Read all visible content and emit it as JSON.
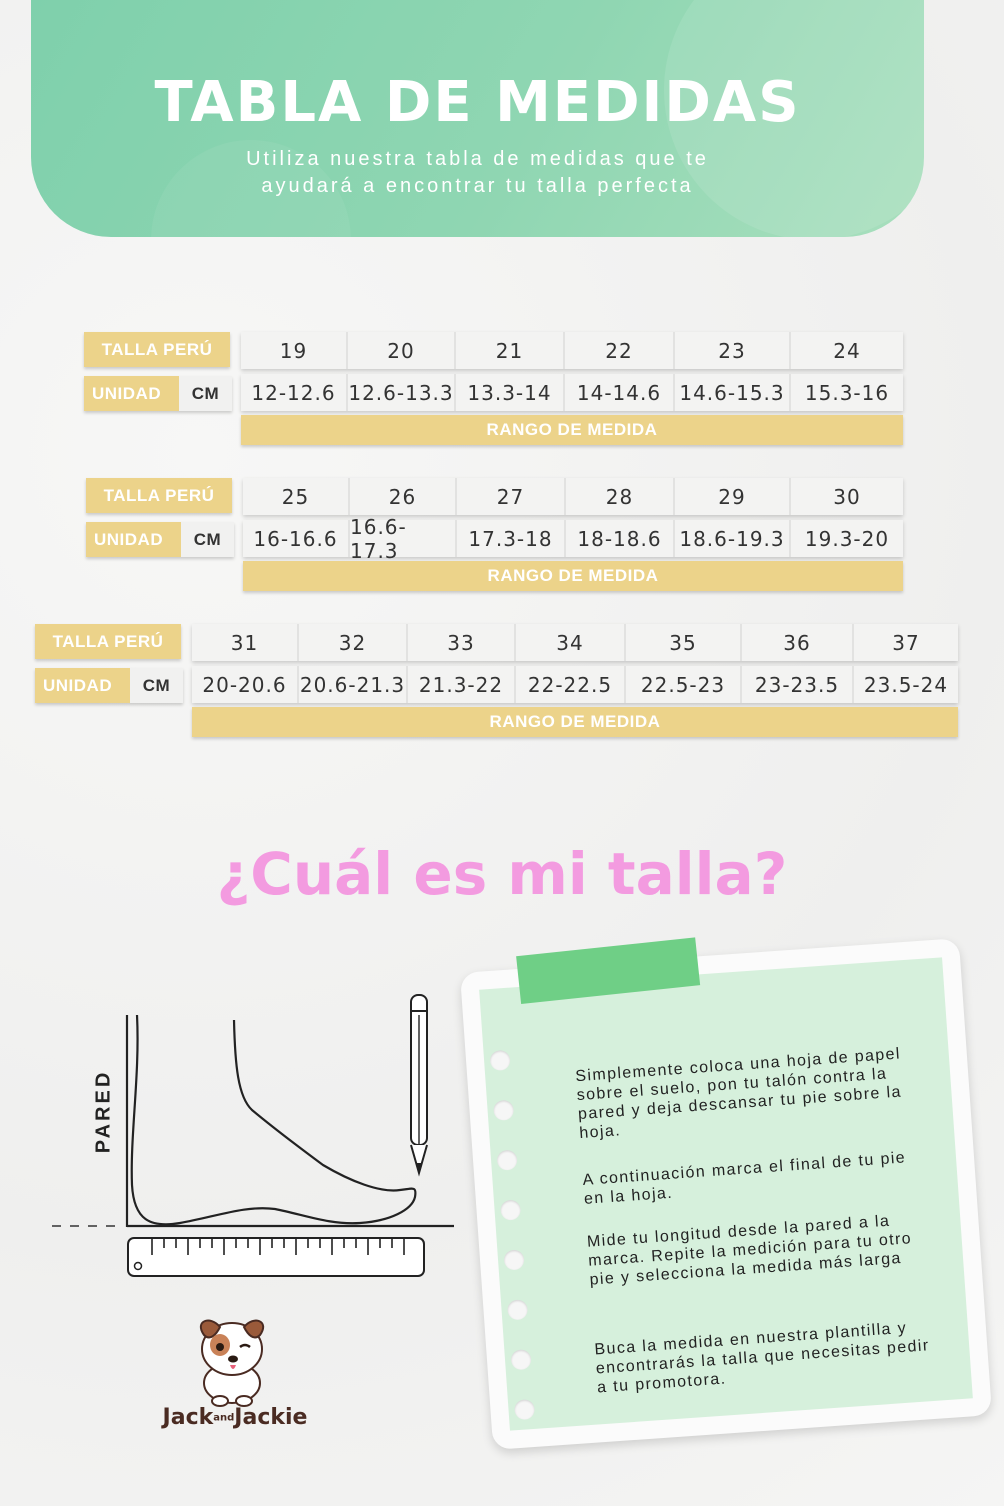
{
  "header": {
    "title": "TABLA DE MEDIDAS",
    "subtitle_line1": "Utiliza nuestra tabla de medidas que te",
    "subtitle_line2": "ayudará a encontrar tu talla perfecta"
  },
  "tables": [
    {
      "size_label": "TALLA PERÚ",
      "unit_label": "UNIDAD",
      "unit_value": "CM",
      "range_label": "RANGO DE MEDIDA",
      "sizes": [
        "19",
        "20",
        "21",
        "22",
        "23",
        "24"
      ],
      "ranges": [
        "12-12.6",
        "12.6-13.3",
        "13.3-14",
        "14-14.6",
        "14.6-15.3",
        "15.3-16"
      ]
    },
    {
      "size_label": "TALLA PERÚ",
      "unit_label": "UNIDAD",
      "unit_value": "CM",
      "range_label": "RANGO DE MEDIDA",
      "sizes": [
        "25",
        "26",
        "27",
        "28",
        "29",
        "30"
      ],
      "ranges": [
        "16-16.6",
        "16.6-17.3",
        "17.3-18",
        "18-18.6",
        "18.6-19.3",
        "19.3-20"
      ]
    },
    {
      "size_label": "TALLA PERÚ",
      "unit_label": "UNIDAD",
      "unit_value": "CM",
      "range_label": "RANGO DE MEDIDA",
      "sizes": [
        "31",
        "32",
        "33",
        "34",
        "35",
        "36",
        "37"
      ],
      "ranges": [
        "20-20.6",
        "20.6-21.3",
        "21.3-22",
        "22-22.5",
        "22.5-23",
        "23-23.5",
        "23.5-24"
      ]
    }
  ],
  "question": "¿Cuál es mi talla?",
  "diagram": {
    "wall_label": "PARED"
  },
  "instructions": [
    "Simplemente coloca una hoja de papel sobre el suelo, pon tu talón contra la pared y deja descansar tu pie sobre la hoja.",
    "A continuación marca el final de tu pie en la hoja.",
    "Mide tu longitud desde la pared a la marca. Repite la medición para tu otro pie y selecciona la medida más larga",
    "Buca la medida en nuestra plantilla y encontrarás la talla que necesitas pedir a tu promotora."
  ],
  "logo": {
    "brand_left": "Jack",
    "brand_mid": "and",
    "brand_right": "Jackie"
  },
  "colors": {
    "header_green": "#8fd6b2",
    "label_gold": "#ecd38a",
    "question_pink": "#f39be0",
    "note_green": "#d6f0dc",
    "tape_green": "#6fcf86"
  }
}
